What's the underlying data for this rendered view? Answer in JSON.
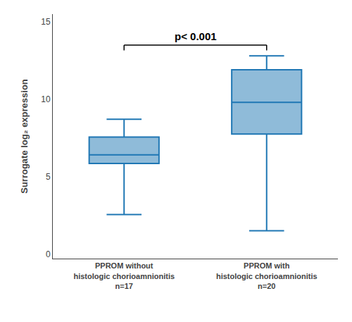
{
  "chart_data": {
    "type": "box",
    "categories": [
      "PPROM without\nhistologic chorioamnionitis\nn=17",
      "PPROM with\nhistologic chorioamnionitis\nn=20"
    ],
    "whisker_low": [
      2.55,
      1.5
    ],
    "q1": [
      5.85,
      7.75
    ],
    "median": [
      6.4,
      9.8
    ],
    "q3": [
      7.55,
      11.9
    ],
    "whisker_high": [
      8.7,
      12.8
    ],
    "ylabel": "Surrogate log₂ expression",
    "ylim": [
      -0.3,
      15.5
    ],
    "yticks": [
      0,
      5,
      10,
      15
    ],
    "grid": false,
    "bracket": {
      "y": 13.5,
      "drop": 0.35,
      "text": "p< 0.001"
    }
  }
}
